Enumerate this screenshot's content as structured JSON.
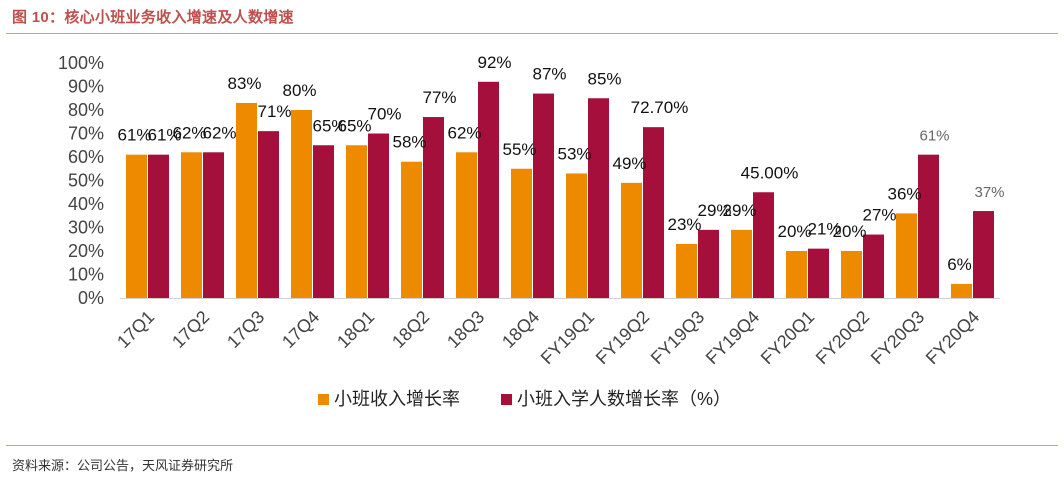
{
  "figure_title": "图 10：核心小班业务收入增速及人数增速",
  "source": "资料来源：公司公告，天风证券研究所",
  "colors": {
    "series1": "#ee8a00",
    "series2": "#a50f3c",
    "accent": "#c0504d"
  },
  "chart_data": {
    "type": "bar",
    "title": "核心小班业务收入增速及人数增速",
    "xlabel": "",
    "ylabel": "",
    "ylim": [
      0,
      100
    ],
    "ytick_labels": [
      "0%",
      "10%",
      "20%",
      "30%",
      "40%",
      "50%",
      "60%",
      "70%",
      "80%",
      "90%",
      "100%"
    ],
    "categories": [
      "17Q1",
      "17Q2",
      "17Q3",
      "17Q4",
      "18Q1",
      "18Q2",
      "18Q3",
      "18Q4",
      "FY19Q1",
      "FY19Q2",
      "FY19Q3",
      "FY19Q4",
      "FY20Q1",
      "FY20Q2",
      "FY20Q3",
      "FY20Q4"
    ],
    "series": [
      {
        "name": "小班收入增长率",
        "values": [
          61,
          62,
          83,
          80,
          65,
          58,
          62,
          55,
          53,
          49,
          23,
          29,
          20,
          20,
          36,
          6
        ],
        "labels": [
          "61%",
          "62%",
          "83%",
          "80%",
          "65%",
          "58%",
          "62%",
          "55%",
          "53%",
          "49%",
          "23%",
          "29%",
          "20%",
          "20%",
          "36%",
          "6%"
        ]
      },
      {
        "name": "小班入学人数增长率（%）",
        "values": [
          61,
          62,
          71,
          65,
          70,
          77,
          92,
          87,
          85,
          72.7,
          29,
          45,
          21,
          27,
          61,
          37
        ],
        "labels": [
          "61%",
          "62%",
          "71%",
          "65%",
          "70%",
          "77%",
          "92%",
          "87%",
          "85%",
          "72.70%",
          "29%",
          "45.00%",
          "21%",
          "27%",
          "61%",
          "37%"
        ]
      }
    ],
    "grid": false,
    "legend_position": "bottom-center"
  }
}
